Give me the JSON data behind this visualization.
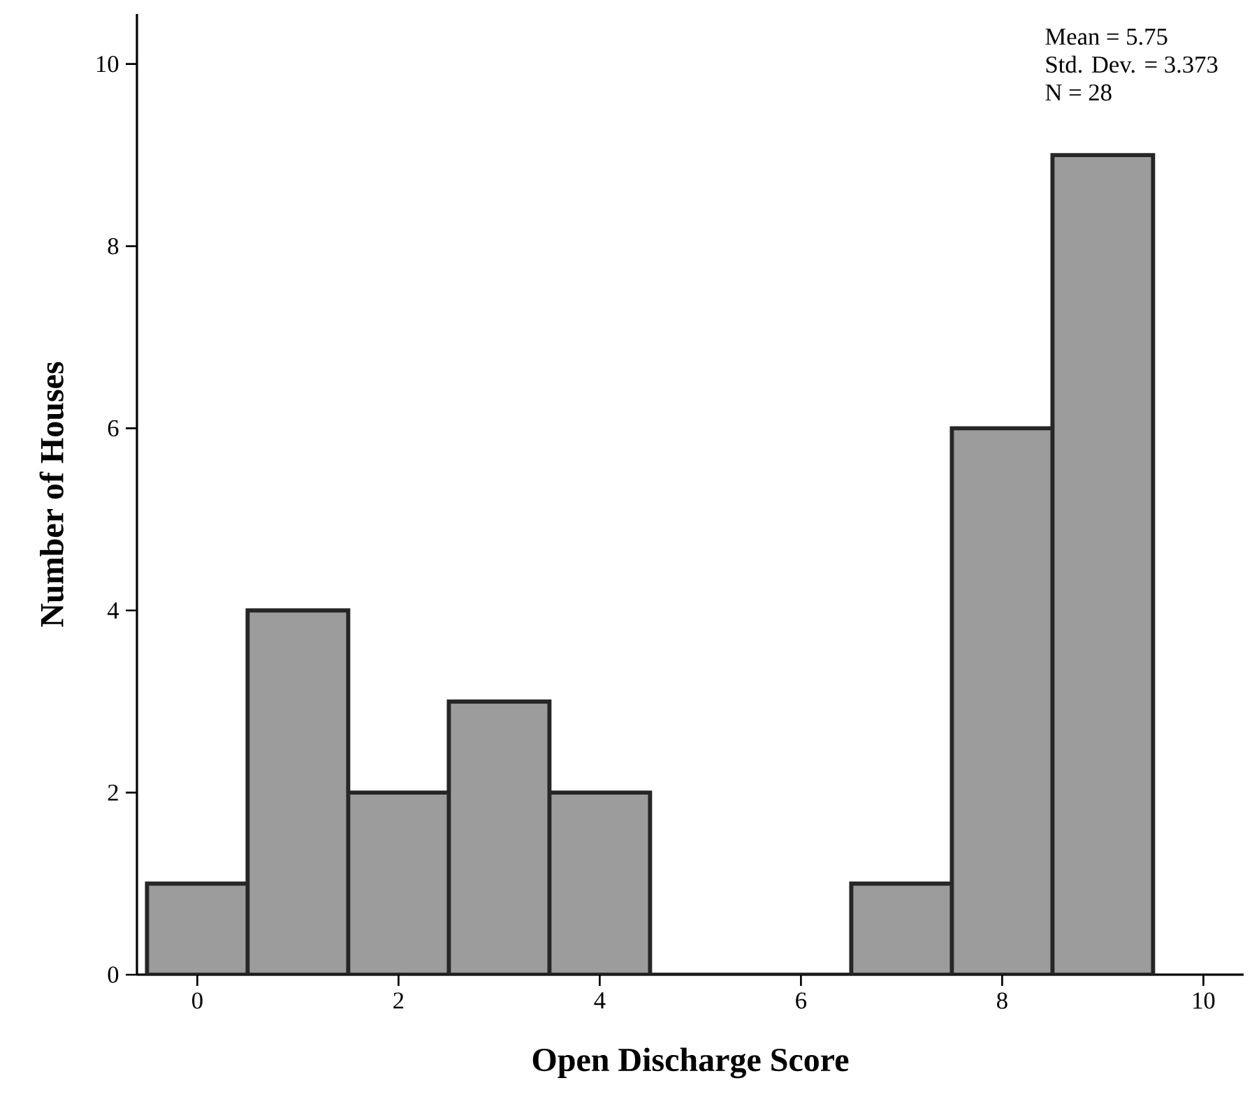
{
  "chart_data": {
    "type": "histogram",
    "xlabel": "Open Discharge Score",
    "ylabel": "Number of Houses",
    "bins": [
      -0.5,
      0.5,
      1.5,
      2.5,
      3.5,
      4.5,
      5.5,
      6.5,
      7.5,
      8.5,
      9.5
    ],
    "values": [
      1,
      4,
      2,
      3,
      2,
      0,
      0,
      1,
      6,
      9
    ],
    "color": "#9c9c9c",
    "xlim": [
      -0.6,
      10.4
    ],
    "ylim": [
      0,
      10.55
    ],
    "xticks": [
      0,
      2,
      4,
      6,
      8,
      10
    ],
    "yticks": [
      0,
      2,
      4,
      6,
      8,
      10
    ],
    "annotations": [
      "Mean = 5.75",
      "Std. Dev. = 3.373",
      "N = 28"
    ]
  }
}
